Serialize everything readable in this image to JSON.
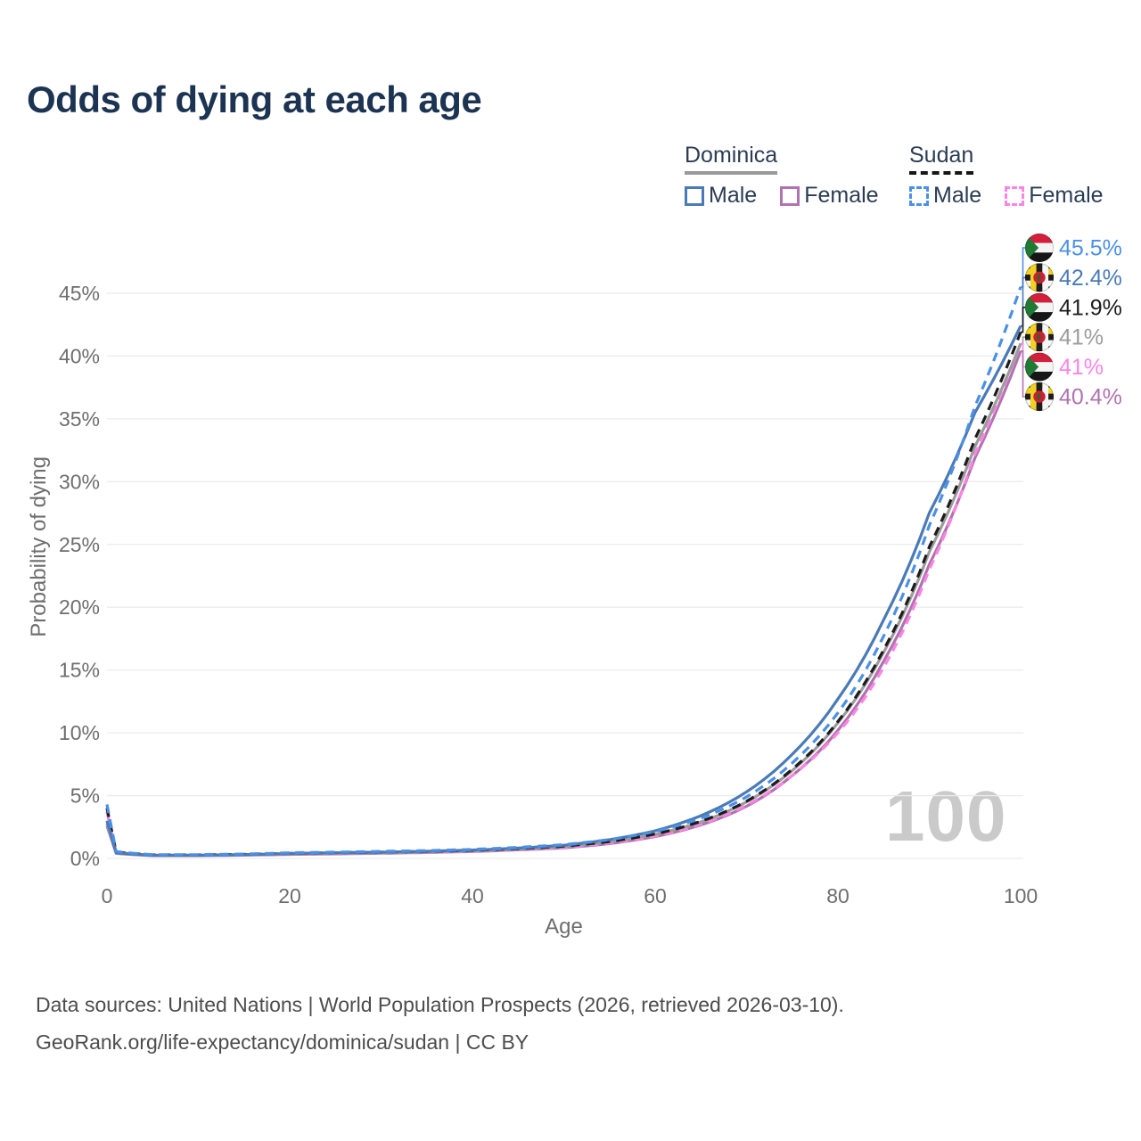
{
  "title": "Odds of dying at each age",
  "watermark_age": "100",
  "legend": {
    "groups": [
      {
        "label": "Dominica",
        "line_style": "solid",
        "underline_color": "#999999",
        "items": [
          {
            "label": "Male",
            "color": "#4a7ab8",
            "dashed": false
          },
          {
            "label": "Female",
            "color": "#b172b0",
            "dashed": false
          }
        ]
      },
      {
        "label": "Sudan",
        "line_style": "dashed",
        "underline_color": "#161616",
        "items": [
          {
            "label": "Male",
            "color": "#4b90e6",
            "dashed": true
          },
          {
            "label": "Female",
            "color": "#fb84e4",
            "dashed": true
          }
        ]
      }
    ]
  },
  "footer": {
    "line1": "Data sources: United Nations | World Population Prospects (2026, retrieved 2026-03-10).",
    "line2": "GeoRank.org/life-expectancy/dominica/sudan | CC BY"
  },
  "chart_data": {
    "type": "line",
    "title": "Odds of dying at each age",
    "xlabel": "Age",
    "ylabel": "Probability of dying",
    "x_ticks": [
      0,
      20,
      40,
      60,
      80,
      100
    ],
    "y_ticks_percent": [
      0,
      5,
      10,
      15,
      20,
      25,
      30,
      35,
      40,
      45
    ],
    "xlim": [
      0,
      100
    ],
    "ylim_percent": [
      0,
      47.5
    ],
    "grid": "horizontal-only",
    "hovered_age": "100",
    "ages": [
      0,
      1,
      5,
      10,
      15,
      20,
      25,
      30,
      35,
      40,
      45,
      50,
      55,
      60,
      65,
      70,
      75,
      80,
      85,
      90,
      95,
      100
    ],
    "series": [
      {
        "name": "Sudan Male",
        "country": "Sudan",
        "sex": "Male",
        "color": "#4b90e6",
        "dashed": true,
        "flag": "sudan",
        "end_label": "45.5%",
        "end_value_percent": 45.5,
        "values_percent": [
          4.3,
          0.55,
          0.3,
          0.3,
          0.35,
          0.45,
          0.5,
          0.56,
          0.62,
          0.72,
          0.88,
          1.1,
          1.5,
          2.15,
          3.2,
          4.9,
          7.6,
          11.6,
          17.7,
          26.5,
          36.0,
          45.5
        ]
      },
      {
        "name": "Dominica Male",
        "country": "Dominica",
        "sex": "Male",
        "color": "#4a7ab8",
        "dashed": false,
        "flag": "dominica",
        "end_label": "42.4%",
        "end_value_percent": 42.4,
        "values_percent": [
          3.0,
          0.45,
          0.25,
          0.25,
          0.3,
          0.4,
          0.45,
          0.5,
          0.57,
          0.67,
          0.82,
          1.05,
          1.5,
          2.2,
          3.4,
          5.3,
          8.3,
          12.7,
          19.0,
          27.5,
          35.5,
          42.4
        ]
      },
      {
        "name": "Sudan Both Sexes",
        "country": "Sudan",
        "sex": "Both",
        "color": "#1c1c1c",
        "dashed": true,
        "flag": "sudan",
        "end_label": "41.9%",
        "end_value_percent": 41.9,
        "values_percent": [
          4.0,
          0.5,
          0.28,
          0.28,
          0.32,
          0.4,
          0.45,
          0.5,
          0.56,
          0.64,
          0.78,
          0.98,
          1.35,
          1.95,
          2.95,
          4.55,
          7.1,
          10.9,
          16.6,
          24.8,
          33.4,
          41.9
        ]
      },
      {
        "name": "Dominica Both Sexes",
        "country": "Dominica",
        "sex": "Both",
        "color": "#9c9c9c",
        "dashed": false,
        "flag": "dominica",
        "end_label": "41%",
        "end_value_percent": 41.0,
        "values_percent": [
          2.8,
          0.42,
          0.24,
          0.24,
          0.28,
          0.36,
          0.41,
          0.46,
          0.52,
          0.6,
          0.74,
          0.95,
          1.33,
          1.92,
          2.9,
          4.5,
          7.0,
          10.8,
          16.4,
          24.4,
          32.8,
          41.0
        ]
      },
      {
        "name": "Sudan Female",
        "country": "Sudan",
        "sex": "Female",
        "color": "#fb84e4",
        "dashed": true,
        "flag": "sudan",
        "end_label": "41%",
        "end_value_percent": 41.0,
        "values_percent": [
          3.7,
          0.48,
          0.26,
          0.26,
          0.3,
          0.36,
          0.4,
          0.44,
          0.5,
          0.57,
          0.7,
          0.88,
          1.22,
          1.78,
          2.72,
          4.22,
          6.62,
          10.0,
          15.2,
          23.0,
          32.2,
          41.0
        ]
      },
      {
        "name": "Dominica Female",
        "country": "Dominica",
        "sex": "Female",
        "color": "#b172b0",
        "dashed": false,
        "flag": "dominica",
        "end_label": "40.4%",
        "end_value_percent": 40.4,
        "values_percent": [
          2.6,
          0.4,
          0.22,
          0.22,
          0.26,
          0.32,
          0.36,
          0.41,
          0.47,
          0.55,
          0.68,
          0.84,
          1.18,
          1.74,
          2.66,
          4.15,
          6.6,
          10.2,
          15.7,
          23.4,
          31.9,
          40.4
        ]
      }
    ]
  }
}
